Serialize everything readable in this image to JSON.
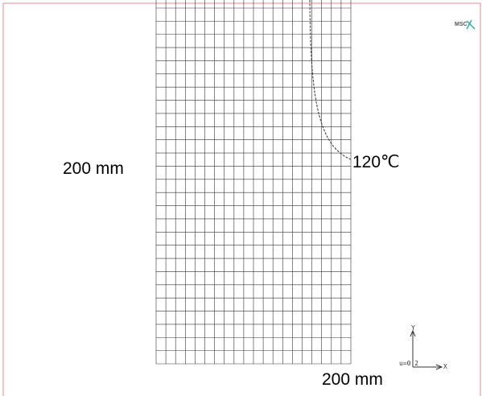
{
  "logo": "MSC",
  "labels": {
    "left": "200 mm",
    "bottom": "200 mm",
    "isotherm": "120℃"
  },
  "triad": {
    "y": "Y",
    "x": "X",
    "note": "u=0.2"
  }
}
